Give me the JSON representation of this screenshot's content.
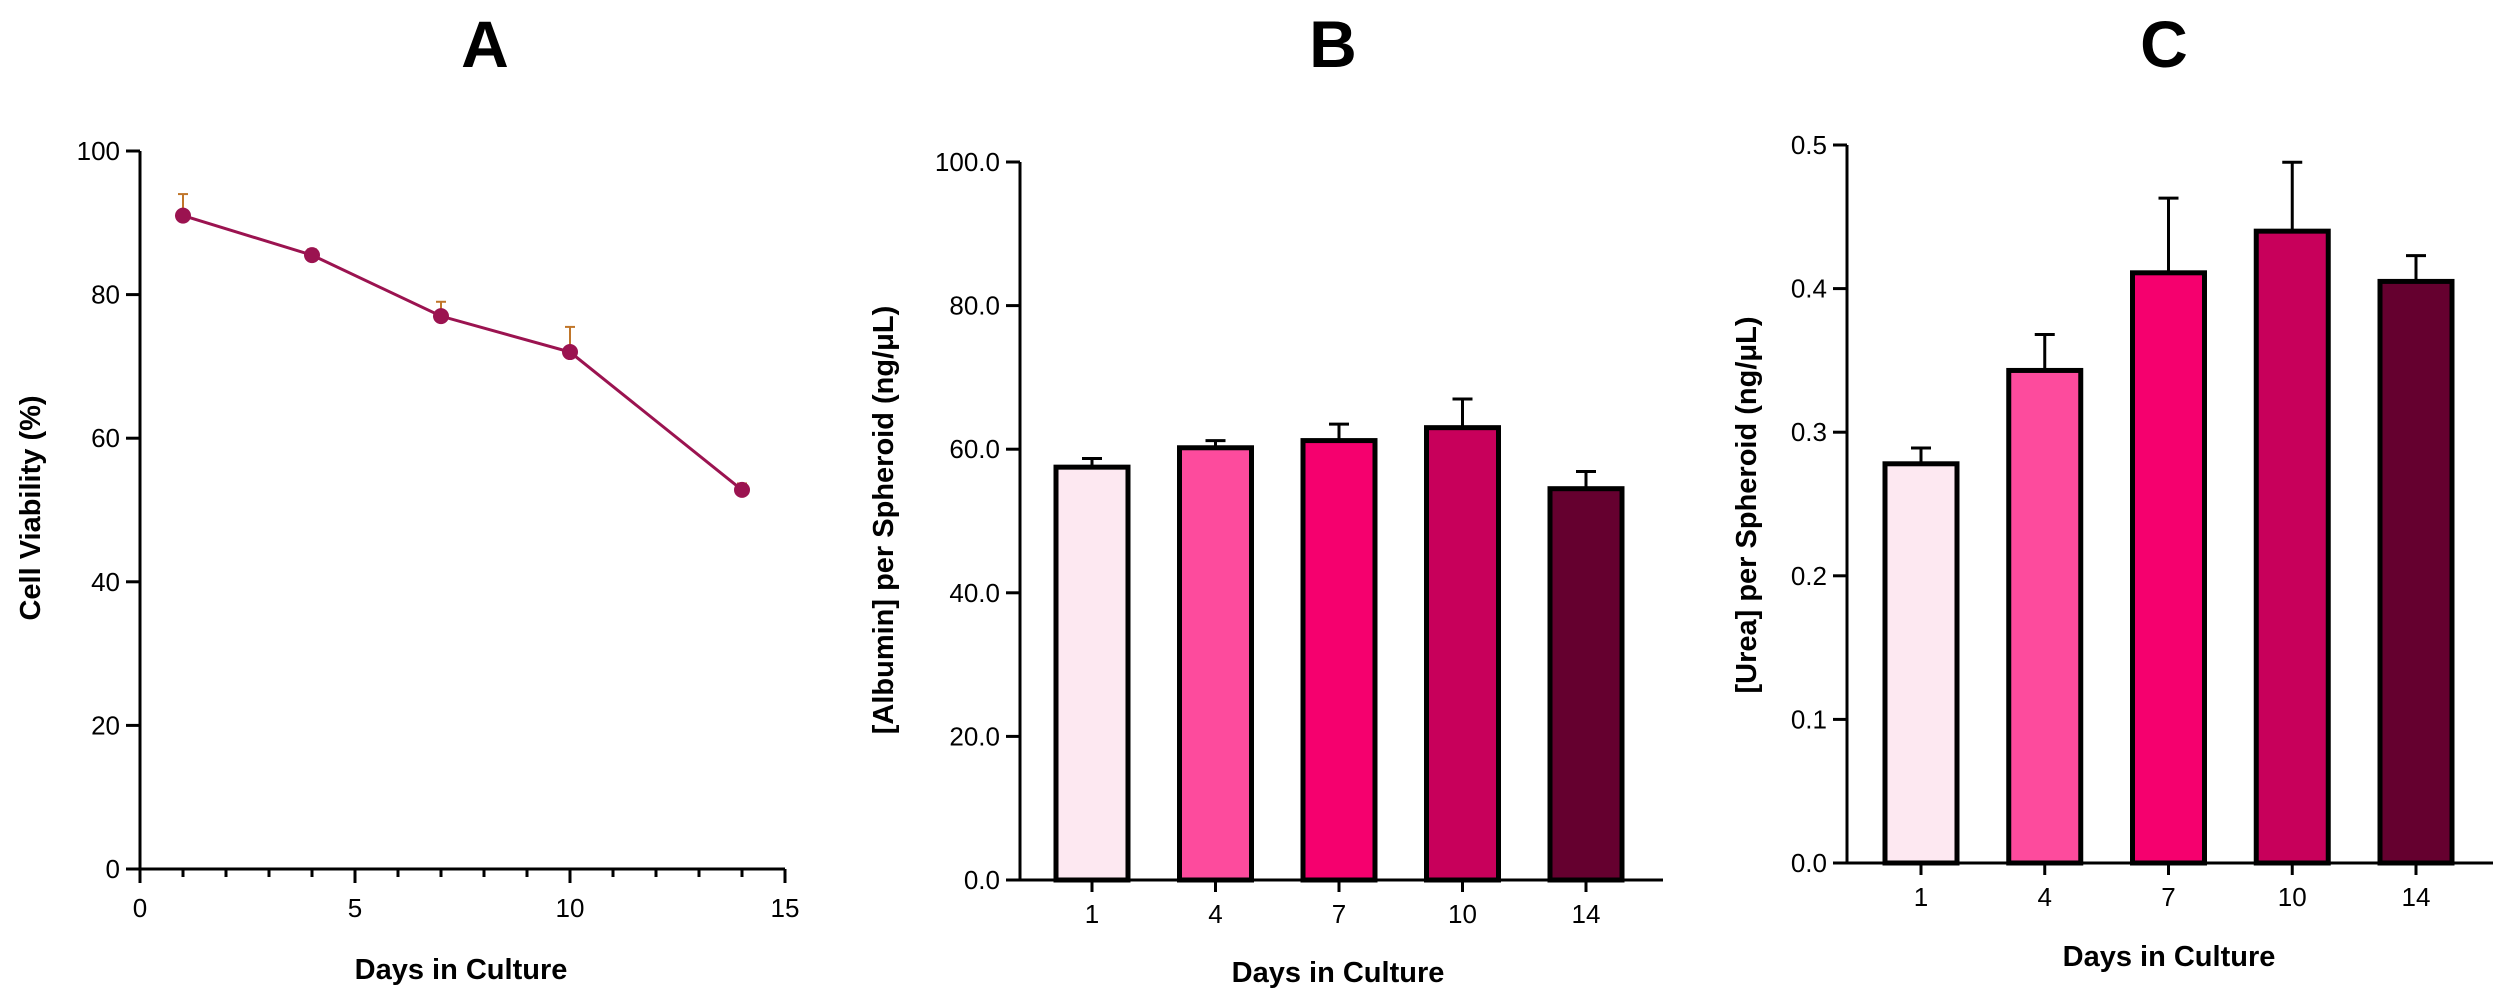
{
  "chart_data": [
    {
      "panel": "A",
      "type": "line",
      "title": "",
      "xlabel": "Days in Culture",
      "ylabel": "Cell Viability (%)",
      "xlim": [
        0,
        15
      ],
      "ylim": [
        0,
        100
      ],
      "xticks": [
        0,
        5,
        10,
        15
      ],
      "yticks": [
        0,
        20,
        40,
        60,
        80,
        100
      ],
      "x_minor_step": 1,
      "x": [
        1,
        4,
        7,
        10,
        14
      ],
      "y": [
        91,
        85.5,
        77,
        72,
        52.8
      ],
      "error": [
        3,
        0.8,
        2,
        3.5,
        0.9
      ],
      "color": "#9b1350",
      "error_color": "#c0762a",
      "grid": false
    },
    {
      "panel": "B",
      "type": "bar",
      "title": "",
      "xlabel": "Days in Culture",
      "ylabel": "[Albumin] per Spheroid (ng/μL)",
      "categories": [
        "1",
        "4",
        "7",
        "10",
        "14"
      ],
      "values": [
        57.5,
        60.2,
        61.2,
        63,
        54.5
      ],
      "error": [
        1.2,
        1.0,
        2.3,
        4.0,
        2.4
      ],
      "colors": [
        "#fde8f1",
        "#fd4b9d",
        "#f5006e",
        "#c8005b",
        "#65002f"
      ],
      "ylim": [
        0,
        100
      ],
      "yticks": [
        0.0,
        20.0,
        40.0,
        60.0,
        80.0,
        100.0
      ],
      "ytick_labels": [
        "0.0",
        "20.0",
        "40.0",
        "60.0",
        "80.0",
        "100.0"
      ],
      "grid": false
    },
    {
      "panel": "C",
      "type": "bar",
      "title": "",
      "xlabel": "Days in Culture",
      "ylabel": "[Urea] per Spheroid (ng/μL)",
      "categories": [
        "1",
        "4",
        "7",
        "10",
        "14"
      ],
      "values": [
        0.278,
        0.343,
        0.411,
        0.44,
        0.405
      ],
      "error": [
        0.011,
        0.025,
        0.052,
        0.048,
        0.018
      ],
      "colors": [
        "#fde8f1",
        "#fd4b9d",
        "#f5006e",
        "#c8005b",
        "#65002f"
      ],
      "ylim": [
        0,
        0.5
      ],
      "yticks": [
        0,
        0.1,
        0.2,
        0.3,
        0.4,
        0.5
      ],
      "ytick_labels": [
        "0.0",
        "0.1",
        "0.2",
        "0.3",
        "0.4",
        "0.5"
      ],
      "grid": false
    }
  ]
}
